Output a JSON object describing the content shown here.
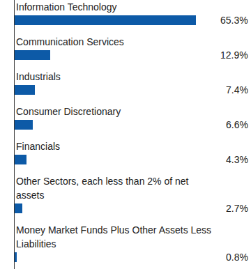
{
  "chart_data": {
    "type": "bar",
    "orientation": "horizontal",
    "data_labels": true,
    "tick_labels": false,
    "categories": [
      "Information Technology",
      "Communication Services",
      "Industrials",
      "Consumer Discretionary",
      "Financials",
      "Other Sectors, each less than 2% of net assets",
      "Money Market Funds Plus Other Assets Less Liabilities"
    ],
    "values": [
      65.3,
      12.9,
      7.4,
      6.6,
      4.3,
      2.7,
      0.8
    ],
    "value_labels": [
      "65.3%",
      "12.9%",
      "7.4%",
      "6.6%",
      "4.3%",
      "2.7%",
      "0.8%"
    ],
    "color": "#0d5aa7",
    "xlim": [
      0,
      66
    ]
  }
}
